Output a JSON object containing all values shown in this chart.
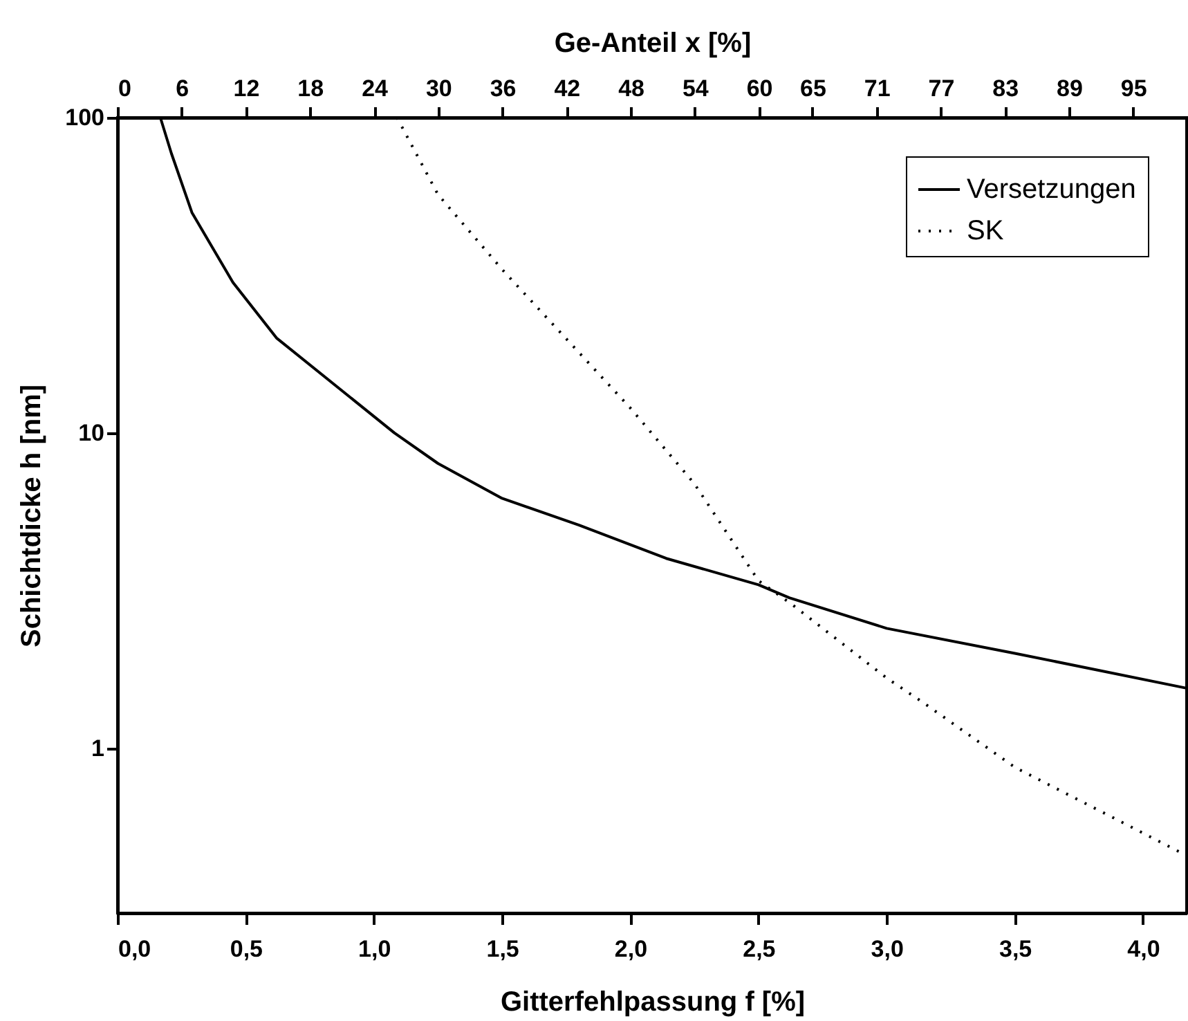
{
  "chart_data": {
    "type": "line",
    "xlabel": "Gitterfehlpassung f [%]",
    "ylabel": "Schichtdicke h [nm]",
    "x2label": "Ge-Anteil x [%]",
    "xlim": [
      0,
      4.17
    ],
    "xticks": [
      {
        "value": 0,
        "label": "0,0"
      },
      {
        "value": 0.5,
        "label": "0,5"
      },
      {
        "value": 1,
        "label": "1,0"
      },
      {
        "value": 1.5,
        "label": "1,5"
      },
      {
        "value": 2,
        "label": "2,0"
      },
      {
        "value": 2.5,
        "label": "2,5"
      },
      {
        "value": 3,
        "label": "3,0"
      },
      {
        "value": 3.5,
        "label": "3,5"
      },
      {
        "value": 4,
        "label": "4,0"
      }
    ],
    "x2lim": [
      0,
      100
    ],
    "x2ticks": [
      0,
      6,
      12,
      18,
      24,
      30,
      36,
      42,
      48,
      54,
      60,
      65,
      71,
      77,
      83,
      89,
      95
    ],
    "ylim": [
      0.3,
      100
    ],
    "yticks": [
      1,
      10,
      100
    ],
    "log": "y",
    "grid": false,
    "legend": "top right",
    "marker": "none",
    "series": [
      {
        "name": "Versetzungen",
        "color": "#000000",
        "line_style": "solid",
        "x": [
          0.167,
          0.21,
          0.29,
          0.36,
          0.45,
          0.62,
          1.08,
          1.25,
          1.5,
          1.8,
          2.14,
          2.5,
          2.62,
          3.0,
          3.5,
          4.17
        ],
        "values": [
          100,
          77,
          50,
          40,
          30,
          20,
          10,
          8,
          6.2,
          5.1,
          4,
          3.3,
          3,
          2.4,
          2,
          1.55
        ]
      },
      {
        "name": "SK",
        "color": "#000000",
        "line_style": "dotted",
        "x": [
          1.09,
          1.25,
          1.5,
          2.0,
          2.25,
          2.5,
          2.63,
          3.0,
          3.14,
          3.5,
          3.87,
          4.14
        ],
        "values": [
          100,
          57,
          33,
          12,
          6.9,
          3.4,
          2.86,
          1.67,
          1.4,
          0.87,
          0.61,
          0.47
        ]
      }
    ]
  }
}
